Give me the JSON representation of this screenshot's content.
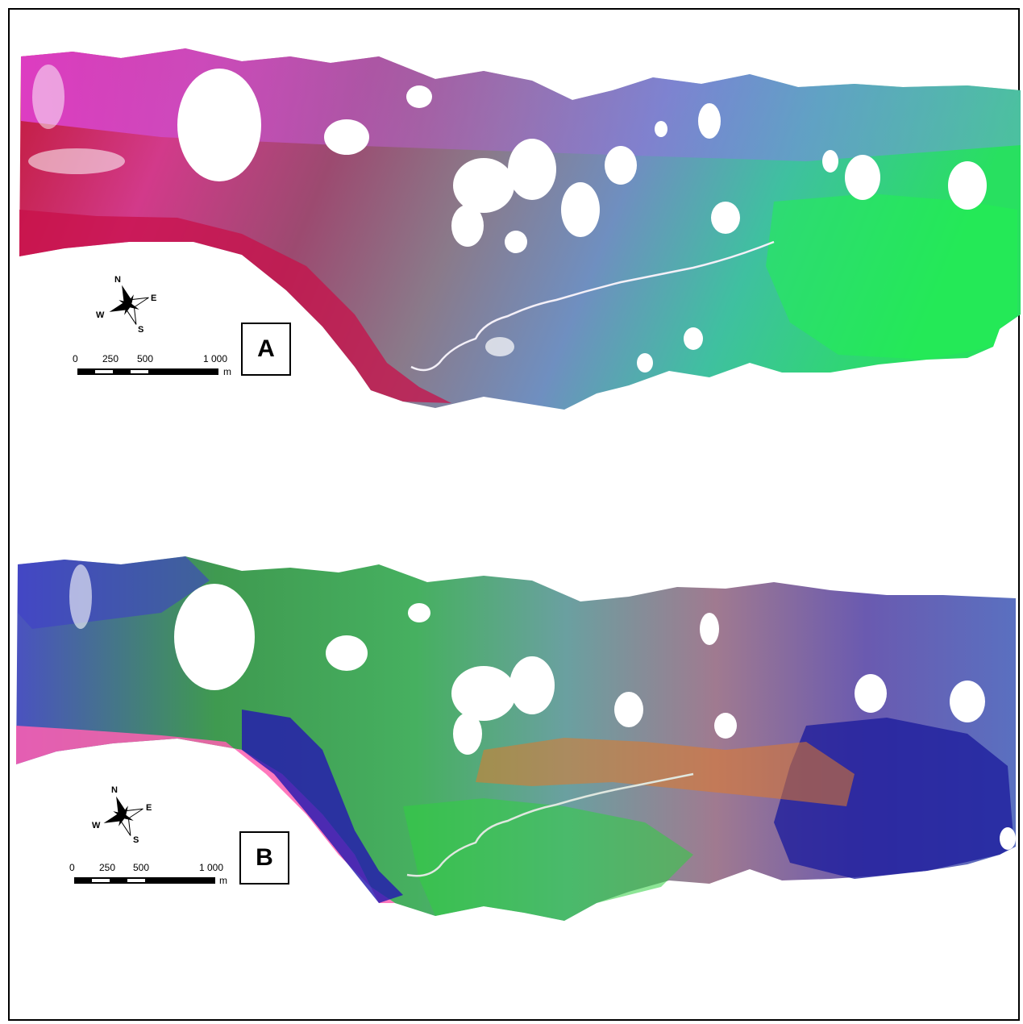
{
  "panels": [
    {
      "label": "A",
      "compass": {
        "north": "N",
        "south": "S",
        "east": "E",
        "west": "W"
      },
      "scale": {
        "ticks": [
          "0",
          "250",
          "500",
          "1 000"
        ],
        "unit": "m"
      }
    },
    {
      "label": "B",
      "compass": {
        "north": "N",
        "south": "S",
        "east": "E",
        "west": "W"
      },
      "scale": {
        "ticks": [
          "0",
          "250",
          "500",
          "1 000"
        ],
        "unit": "m"
      }
    }
  ],
  "colors": {
    "panel_a": [
      "#d21040",
      "#d93cc8",
      "#8c6fb5",
      "#5a8ad6",
      "#3fbf8a",
      "#1fe84a"
    ],
    "panel_b": [
      "#ff4fa8",
      "#2420b8",
      "#2fbf3f",
      "#d05a2a",
      "#9a8ad0",
      "#2a2aa8"
    ]
  }
}
